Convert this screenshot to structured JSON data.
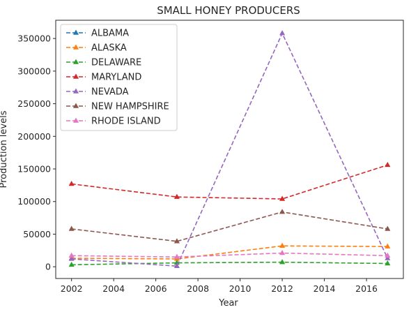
{
  "chart_data": {
    "type": "line",
    "title": "SMALL HONEY PRODUCERS",
    "xlabel": "Year",
    "ylabel": "Production levels",
    "x": [
      2002,
      2007,
      2012,
      2017
    ],
    "xticks": [
      2002,
      2004,
      2006,
      2008,
      2010,
      2012,
      2014,
      2016
    ],
    "yticks": [
      0,
      50000,
      100000,
      150000,
      200000,
      250000,
      300000,
      350000
    ],
    "xlim": [
      2001.25,
      2017.75
    ],
    "ylim": [
      -18000,
      378000
    ],
    "legend_position": "top-left",
    "grid": false,
    "series": [
      {
        "name": "ALBAMA",
        "color": "#1f77b4",
        "values": [
          null,
          null,
          null,
          null
        ]
      },
      {
        "name": "ALASKA",
        "color": "#ff7f0e",
        "values": [
          13000,
          12000,
          32000,
          31000
        ]
      },
      {
        "name": "DELAWARE",
        "color": "#2ca02c",
        "values": [
          3000,
          6000,
          7000,
          5000
        ]
      },
      {
        "name": "MARYLAND",
        "color": "#d62728",
        "values": [
          127000,
          107000,
          104000,
          156000
        ]
      },
      {
        "name": "NEVADA",
        "color": "#9467bd",
        "values": [
          12000,
          1000,
          358000,
          13000
        ]
      },
      {
        "name": "NEW HAMPSHIRE",
        "color": "#8c564b",
        "values": [
          58000,
          39000,
          84000,
          58000
        ]
      },
      {
        "name": "RHODE ISLAND",
        "color": "#e377c2",
        "values": [
          17000,
          15000,
          21000,
          17000
        ]
      }
    ]
  }
}
